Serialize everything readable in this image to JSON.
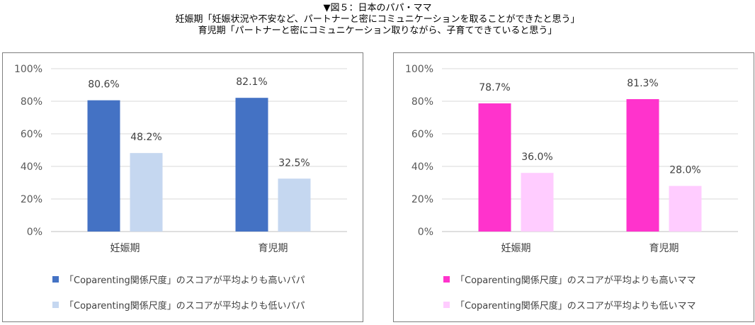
{
  "header": {
    "line1": "▼図５：日本のパパ・ママ",
    "line2": "妊娠期「妊娠状況や不安など、パートナーと密にコミュニケーションを取ることができたと思う」",
    "line3": "育児期「パートナーと密にコミュニケーション取りながら、子育てできていると思う」"
  },
  "chart_data": [
    {
      "type": "bar",
      "categories": [
        "妊娠期",
        "育児期"
      ],
      "ylim": [
        0,
        100
      ],
      "yticks": [
        "0%",
        "20%",
        "40%",
        "60%",
        "80%",
        "100%"
      ],
      "grid": true,
      "legend_position": "bottom",
      "series": [
        {
          "name": "「Coparenting関係尺度」のスコアが平均よりも高いパパ",
          "values": [
            80.6,
            82.1
          ],
          "labels": [
            "80.6%",
            "82.1%"
          ],
          "color": "#4472C4"
        },
        {
          "name": "「Coparenting関係尺度」のスコアが平均よりも低いパパ",
          "values": [
            48.2,
            32.5
          ],
          "labels": [
            "48.2%",
            "32.5%"
          ],
          "color": "#C5D7F0"
        }
      ]
    },
    {
      "type": "bar",
      "categories": [
        "妊娠期",
        "育児期"
      ],
      "ylim": [
        0,
        100
      ],
      "yticks": [
        "0%",
        "20%",
        "40%",
        "60%",
        "80%",
        "100%"
      ],
      "grid": true,
      "legend_position": "bottom",
      "series": [
        {
          "name": "「Coparenting関係尺度」のスコアが平均よりも高いママ",
          "values": [
            78.7,
            81.3
          ],
          "labels": [
            "78.7%",
            "81.3%"
          ],
          "color": "#FF33CC"
        },
        {
          "name": "「Coparenting関係尺度」のスコアが平均よりも低いママ",
          "values": [
            36.0,
            28.0
          ],
          "labels": [
            "36.0%",
            "28.0%"
          ],
          "color": "#FFCCFF"
        }
      ]
    }
  ]
}
